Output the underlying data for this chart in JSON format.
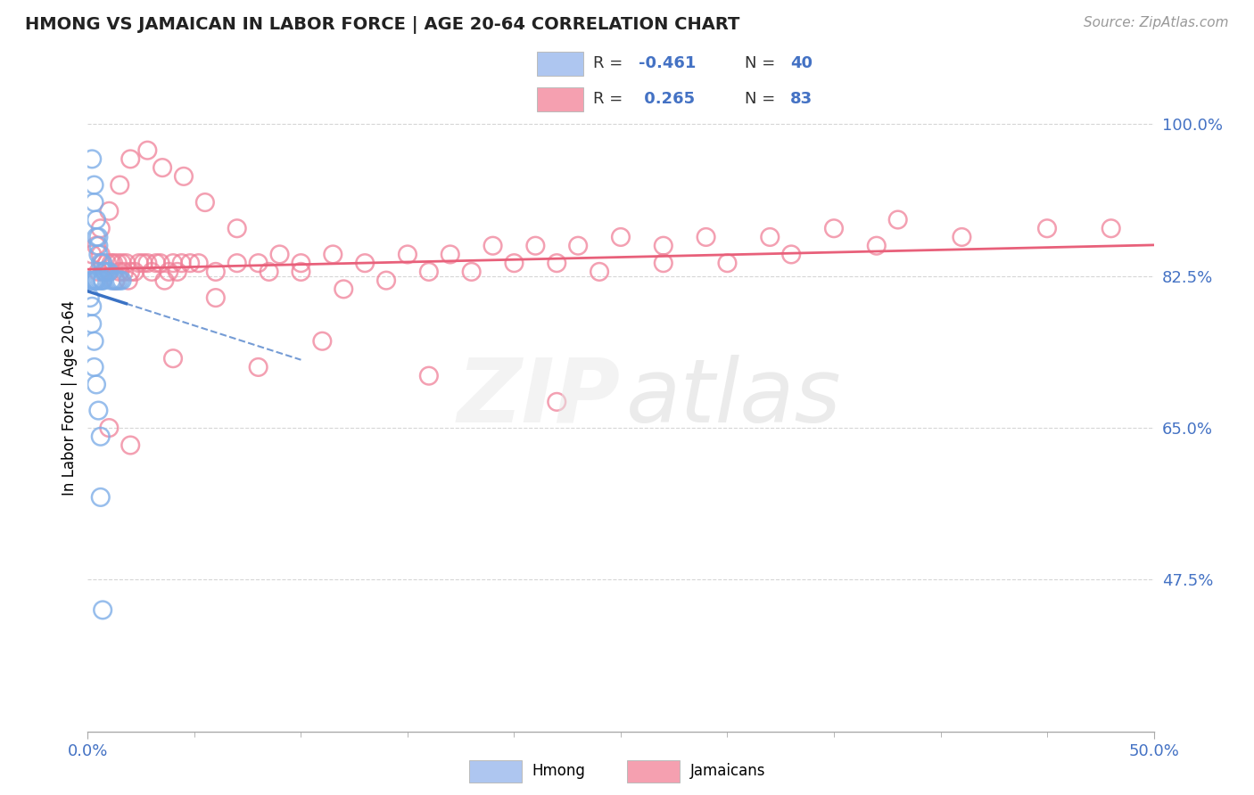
{
  "title": "HMONG VS JAMAICAN IN LABOR FORCE | AGE 20-64 CORRELATION CHART",
  "source": "Source: ZipAtlas.com",
  "ylabel_ticks": [
    0.475,
    0.65,
    0.825,
    1.0
  ],
  "ylabel_labels": [
    "47.5%",
    "65.0%",
    "82.5%",
    "100.0%"
  ],
  "xlim": [
    0.0,
    0.5
  ],
  "ylim": [
    0.3,
    1.07
  ],
  "legend_r_hmong": "-0.461",
  "legend_n_hmong": "40",
  "legend_r_jamaican": "0.265",
  "legend_n_jamaican": "83",
  "hmong_color": "#7eaee8",
  "jamaican_color": "#f08098",
  "hmong_line_color": "#3a72c4",
  "jamaican_line_color": "#e8607a",
  "background_color": "#ffffff",
  "hmong_x": [
    0.002,
    0.003,
    0.003,
    0.004,
    0.004,
    0.005,
    0.005,
    0.005,
    0.006,
    0.007,
    0.007,
    0.008,
    0.009,
    0.01,
    0.011,
    0.012,
    0.013,
    0.014,
    0.015,
    0.016,
    0.001,
    0.002,
    0.003,
    0.003,
    0.004,
    0.004,
    0.005,
    0.006,
    0.007,
    0.007,
    0.001,
    0.002,
    0.002,
    0.003,
    0.003,
    0.004,
    0.005,
    0.006,
    0.006,
    0.007
  ],
  "hmong_y": [
    0.96,
    0.93,
    0.91,
    0.89,
    0.87,
    0.87,
    0.86,
    0.85,
    0.84,
    0.84,
    0.83,
    0.83,
    0.83,
    0.83,
    0.82,
    0.82,
    0.82,
    0.82,
    0.82,
    0.82,
    0.82,
    0.82,
    0.82,
    0.82,
    0.82,
    0.82,
    0.82,
    0.82,
    0.82,
    0.82,
    0.8,
    0.79,
    0.77,
    0.75,
    0.72,
    0.7,
    0.67,
    0.64,
    0.57,
    0.44
  ],
  "jamaican_x": [
    0.002,
    0.004,
    0.005,
    0.006,
    0.007,
    0.008,
    0.009,
    0.01,
    0.011,
    0.012,
    0.013,
    0.014,
    0.015,
    0.016,
    0.017,
    0.018,
    0.019,
    0.02,
    0.022,
    0.024,
    0.026,
    0.028,
    0.03,
    0.032,
    0.034,
    0.036,
    0.038,
    0.04,
    0.042,
    0.044,
    0.048,
    0.052,
    0.06,
    0.07,
    0.08,
    0.09,
    0.1,
    0.115,
    0.13,
    0.15,
    0.17,
    0.19,
    0.21,
    0.23,
    0.25,
    0.27,
    0.29,
    0.32,
    0.35,
    0.38,
    0.006,
    0.01,
    0.015,
    0.02,
    0.028,
    0.035,
    0.045,
    0.055,
    0.07,
    0.085,
    0.1,
    0.12,
    0.14,
    0.16,
    0.18,
    0.2,
    0.22,
    0.24,
    0.27,
    0.3,
    0.33,
    0.37,
    0.41,
    0.45,
    0.48,
    0.01,
    0.02,
    0.04,
    0.06,
    0.08,
    0.11,
    0.16,
    0.22
  ],
  "jamaican_y": [
    0.85,
    0.86,
    0.83,
    0.85,
    0.84,
    0.83,
    0.84,
    0.83,
    0.84,
    0.84,
    0.82,
    0.84,
    0.83,
    0.84,
    0.83,
    0.84,
    0.82,
    0.83,
    0.83,
    0.84,
    0.84,
    0.84,
    0.83,
    0.84,
    0.84,
    0.82,
    0.83,
    0.84,
    0.83,
    0.84,
    0.84,
    0.84,
    0.83,
    0.84,
    0.84,
    0.85,
    0.84,
    0.85,
    0.84,
    0.85,
    0.85,
    0.86,
    0.86,
    0.86,
    0.87,
    0.86,
    0.87,
    0.87,
    0.88,
    0.89,
    0.88,
    0.9,
    0.93,
    0.96,
    0.97,
    0.95,
    0.94,
    0.91,
    0.88,
    0.83,
    0.83,
    0.81,
    0.82,
    0.83,
    0.83,
    0.84,
    0.84,
    0.83,
    0.84,
    0.84,
    0.85,
    0.86,
    0.87,
    0.88,
    0.88,
    0.65,
    0.63,
    0.73,
    0.8,
    0.72,
    0.75,
    0.71,
    0.68
  ]
}
